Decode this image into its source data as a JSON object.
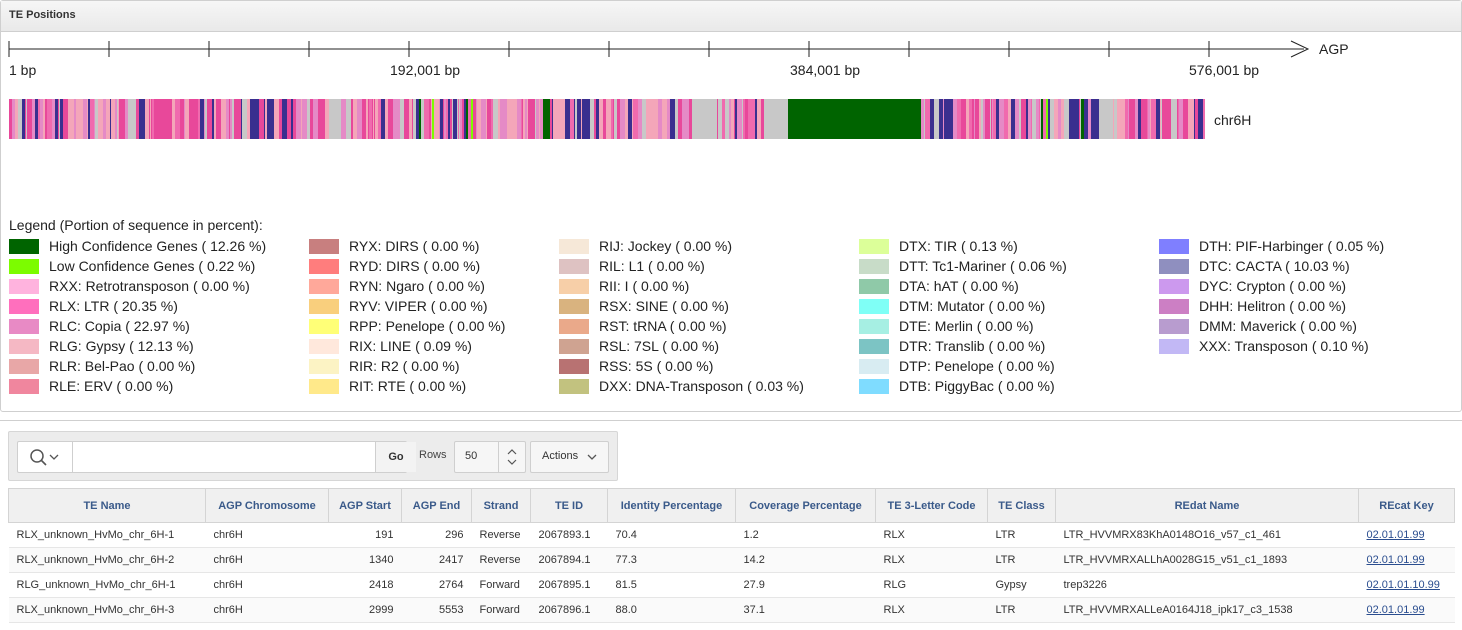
{
  "region": {
    "title": "TE Positions"
  },
  "axis": {
    "end_label": "AGP",
    "tick_labels": [
      "1 bp",
      "192,001 bp",
      "384,001 bp",
      "576,001 bp"
    ]
  },
  "track": {
    "label": "chr6H"
  },
  "colors": {
    "ltr_pink": "#e8489a",
    "copia": "#e58ac6",
    "gypsy": "#f4a6b9",
    "gap": "#c8c8c8",
    "cacta": "#3a2f8f",
    "hc_gene": "#006400",
    "lc_gene": "#7cfc00"
  },
  "legend": {
    "title": "Legend (Portion of sequence in percent):",
    "items": [
      {
        "label": "High Confidence Genes ( 12.26 %)",
        "color": "#006400"
      },
      {
        "label": "Low Confidence Genes ( 0.22 %)",
        "color": "#7cfc00"
      },
      {
        "label": "RXX: Retrotransposon ( 0.00 %)",
        "color": "#ffb3de"
      },
      {
        "label": "RLX: LTR ( 20.35 %)",
        "color": "#ff6fbd"
      },
      {
        "label": "RLC: Copia ( 22.97 %)",
        "color": "#e88ac5"
      },
      {
        "label": "RLG: Gypsy ( 12.13 %)",
        "color": "#f5b8c4"
      },
      {
        "label": "RLR: Bel-Pao ( 0.00 %)",
        "color": "#e8a7a7"
      },
      {
        "label": "RLE: ERV ( 0.00 %)",
        "color": "#f0869e"
      },
      {
        "label": "RYX: DIRS ( 0.00 %)",
        "color": "#c87f7f"
      },
      {
        "label": "RYD: DIRS ( 0.00 %)",
        "color": "#ff7d7d"
      },
      {
        "label": "RYN: Ngaro ( 0.00 %)",
        "color": "#ffa89a"
      },
      {
        "label": "RYV: VIPER ( 0.00 %)",
        "color": "#f9cf7d"
      },
      {
        "label": "RPP: Penelope ( 0.00 %)",
        "color": "#ffff77"
      },
      {
        "label": "RIX: LINE ( 0.09 %)",
        "color": "#ffe8dc"
      },
      {
        "label": "RIR: R2 ( 0.00 %)",
        "color": "#fcf3c4"
      },
      {
        "label": "RIT: RTE ( 0.00 %)",
        "color": "#ffe98a"
      },
      {
        "label": "RIJ: Jockey ( 0.00 %)",
        "color": "#f6e8d8"
      },
      {
        "label": "RIL: L1 ( 0.00 %)",
        "color": "#dec2c2"
      },
      {
        "label": "RII: I ( 0.00 %)",
        "color": "#f7cfa8"
      },
      {
        "label": "RSX: SINE ( 0.00 %)",
        "color": "#d9b37f"
      },
      {
        "label": "RST: tRNA ( 0.00 %)",
        "color": "#eaa98a"
      },
      {
        "label": "RSL: 7SL ( 0.00 %)",
        "color": "#cfa391"
      },
      {
        "label": "RSS: 5S ( 0.00 %)",
        "color": "#b87272"
      },
      {
        "label": "DXX: DNA-Transposon ( 0.03 %)",
        "color": "#c2c27f"
      },
      {
        "label": "DTX: TIR ( 0.13 %)",
        "color": "#dcff99"
      },
      {
        "label": "DTT: Tc1-Mariner ( 0.06 %)",
        "color": "#c8dcc8"
      },
      {
        "label": "DTA: hAT ( 0.00 %)",
        "color": "#8fc9a8"
      },
      {
        "label": "DTM: Mutator ( 0.00 %)",
        "color": "#7ffff6"
      },
      {
        "label": "DTE: Merlin ( 0.00 %)",
        "color": "#a6efe3"
      },
      {
        "label": "DTR: Translib ( 0.00 %)",
        "color": "#7cc4c4"
      },
      {
        "label": "DTP: Penelope ( 0.00 %)",
        "color": "#d8ecf2"
      },
      {
        "label": "DTB: PiggyBac ( 0.00 %)",
        "color": "#7fdcff"
      },
      {
        "label": "DTH: PIF-Harbinger ( 0.05 %)",
        "color": "#7f7fff"
      },
      {
        "label": "DTC: CACTA ( 10.03 %)",
        "color": "#8f8fbf"
      },
      {
        "label": "DYC: Crypton ( 0.00 %)",
        "color": "#cc99ee"
      },
      {
        "label": "DHH: Helitron ( 0.00 %)",
        "color": "#cc7fc4"
      },
      {
        "label": "DMM: Maverick ( 0.00 %)",
        "color": "#b89ccf"
      },
      {
        "label": "XXX: Transposon ( 0.10 %)",
        "color": "#c2b8f5"
      }
    ]
  },
  "toolbar": {
    "search_placeholder": "",
    "go_label": "Go",
    "rows_label": "Rows",
    "rows_value": "50",
    "actions_label": "Actions"
  },
  "table": {
    "columns": [
      "TE Name",
      "AGP Chromosome",
      "AGP Start",
      "AGP End",
      "Strand",
      "TE ID",
      "Identity Percentage",
      "Coverage Percentage",
      "TE 3-Letter Code",
      "TE Class",
      "REdat Name",
      "REcat Key"
    ],
    "rows": [
      [
        "RLX_unknown_HvMo_chr_6H-1",
        "chr6H",
        "191",
        "296",
        "Reverse",
        "2067893.1",
        "70.4",
        "1.2",
        "RLX",
        "LTR",
        "LTR_HVVMRX83KhA0148O16_v57_c1_461",
        "02.01.01.99"
      ],
      [
        "RLX_unknown_HvMo_chr_6H-2",
        "chr6H",
        "1340",
        "2417",
        "Reverse",
        "2067894.1",
        "77.3",
        "14.2",
        "RLX",
        "LTR",
        "LTR_HVVMRXALLhA0028G15_v51_c1_1893",
        "02.01.01.99"
      ],
      [
        "RLG_unknown_HvMo_chr_6H-1",
        "chr6H",
        "2418",
        "2764",
        "Forward",
        "2067895.1",
        "81.5",
        "27.9",
        "RLG",
        "Gypsy",
        "trep3226",
        "02.01.01.10.99"
      ],
      [
        "RLX_unknown_HvMo_chr_6H-3",
        "chr6H",
        "2999",
        "5553",
        "Forward",
        "2067896.1",
        "88.0",
        "37.1",
        "RLX",
        "LTR",
        "LTR_HVVMRXALLeA0164J18_ipk17_c3_1538",
        "02.01.01.99"
      ]
    ]
  }
}
